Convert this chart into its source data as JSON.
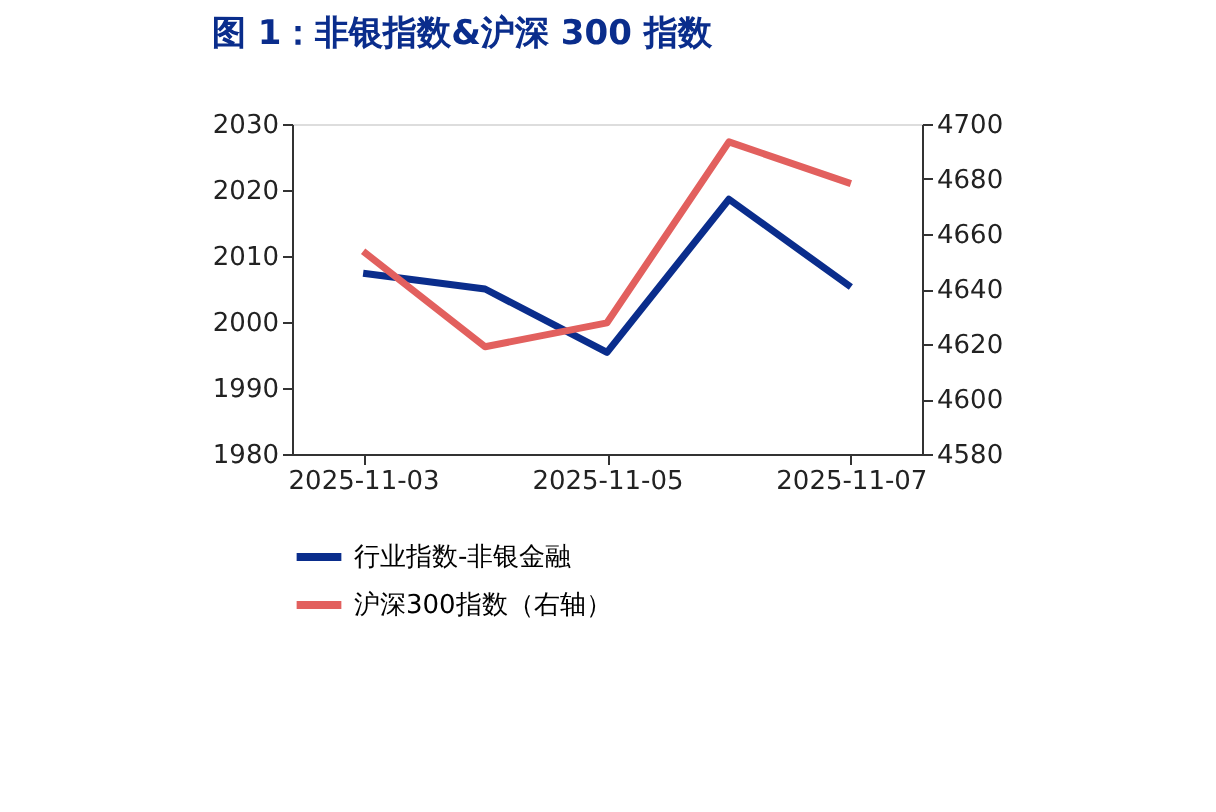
{
  "chart_data": {
    "type": "line",
    "title": "图 1：非银指数&沪深 300 指数",
    "x": [
      "2025-11-03",
      "2025-11-04",
      "2025-11-05",
      "2025-11-06",
      "2025-11-07"
    ],
    "series": [
      {
        "name": "行业指数-非银金融",
        "color": "#0a2d8c",
        "values": [
          2007.4,
          2005,
          1995.4,
          2018.6,
          2005.3
        ]
      },
      {
        "name": "沪深300指数（右轴）",
        "color": "#e2605e",
        "axis": "y2",
        "values": [
          4653.7,
          4619,
          4627.7,
          4693.5,
          4678.3
        ]
      }
    ],
    "xlim": [
      "2025-11-02T10:00",
      "2025-11-07T14:00"
    ],
    "xticks": [
      "2025-11-03",
      "2025-11-05",
      "2025-11-07"
    ],
    "ylim": [
      1980,
      2030
    ],
    "yticks": [
      1980,
      1990,
      2000,
      2010,
      2020,
      2030
    ],
    "y2lim": [
      4580,
      4700
    ],
    "y2ticks": [
      4580,
      4600,
      4620,
      4640,
      4660,
      4680,
      4700
    ],
    "grid": false,
    "legend": "bottom",
    "marker": "none",
    "line_style": "solid"
  }
}
